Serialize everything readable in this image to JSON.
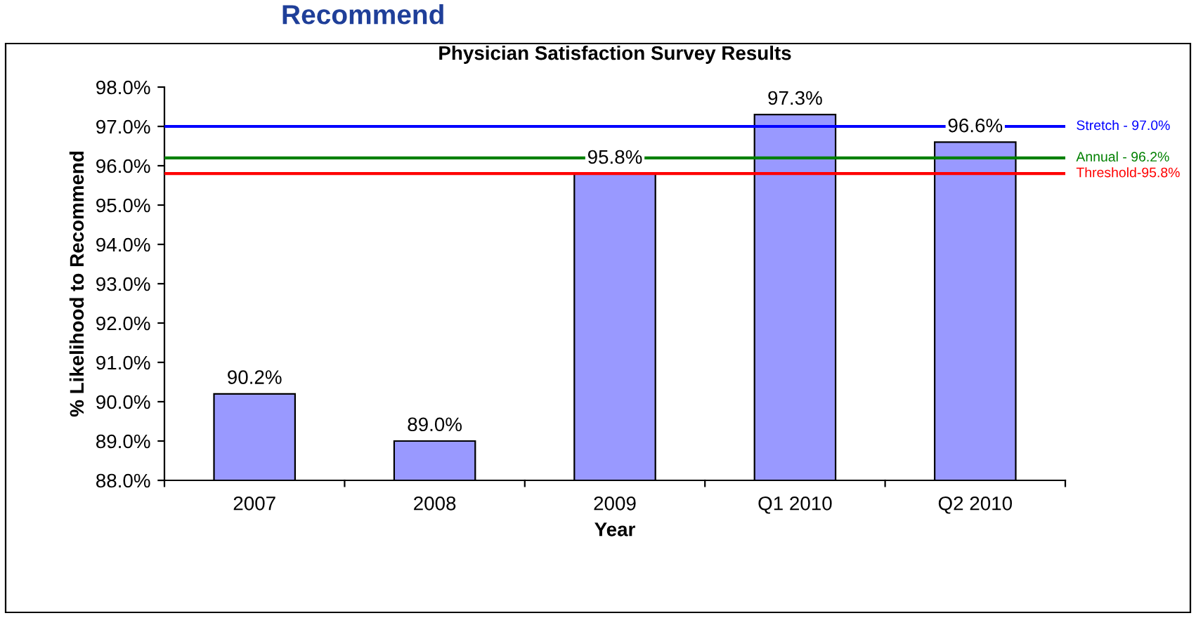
{
  "chart_data": {
    "type": "bar",
    "title": "Physician Satisfaction Survey Results",
    "xlabel": "Year",
    "ylabel": "% Likelihood to Recommend",
    "annotations": [
      "Recommend"
    ],
    "categories": [
      "2007",
      "2008",
      "2009",
      "Q1 2010",
      "Q2 2010"
    ],
    "values": [
      90.2,
      89.0,
      95.8,
      97.3,
      96.6
    ],
    "value_labels": [
      "90.2%",
      "89.0%",
      "95.8%",
      "97.3%",
      "96.6%"
    ],
    "color": "#9999ff",
    "ylim": [
      88.0,
      98.0
    ],
    "yticks": [
      {
        "value": 88,
        "label": "88.0%"
      },
      {
        "value": 89,
        "label": "89.0%"
      },
      {
        "value": 90,
        "label": "90.0%"
      },
      {
        "value": 91,
        "label": "91.0%"
      },
      {
        "value": 92,
        "label": "92.0%"
      },
      {
        "value": 93,
        "label": "93.0%"
      },
      {
        "value": 94,
        "label": "94.0%"
      },
      {
        "value": 95,
        "label": "95.0%"
      },
      {
        "value": 96,
        "label": "96.0%"
      },
      {
        "value": 97,
        "label": "97.0%"
      },
      {
        "value": 98,
        "label": "98.0%"
      }
    ],
    "ref_lines": [
      {
        "axis": "y",
        "value": 97.0,
        "label": "Stretch - 97.0%",
        "color": "#0000ff"
      },
      {
        "axis": "y",
        "value": 96.2,
        "label": "Annual - 96.2%",
        "color": "#008000"
      },
      {
        "axis": "y",
        "value": 95.8,
        "label": "Threshold-95.8%",
        "color": "#ff0000"
      }
    ],
    "grid": false,
    "legend": false
  }
}
